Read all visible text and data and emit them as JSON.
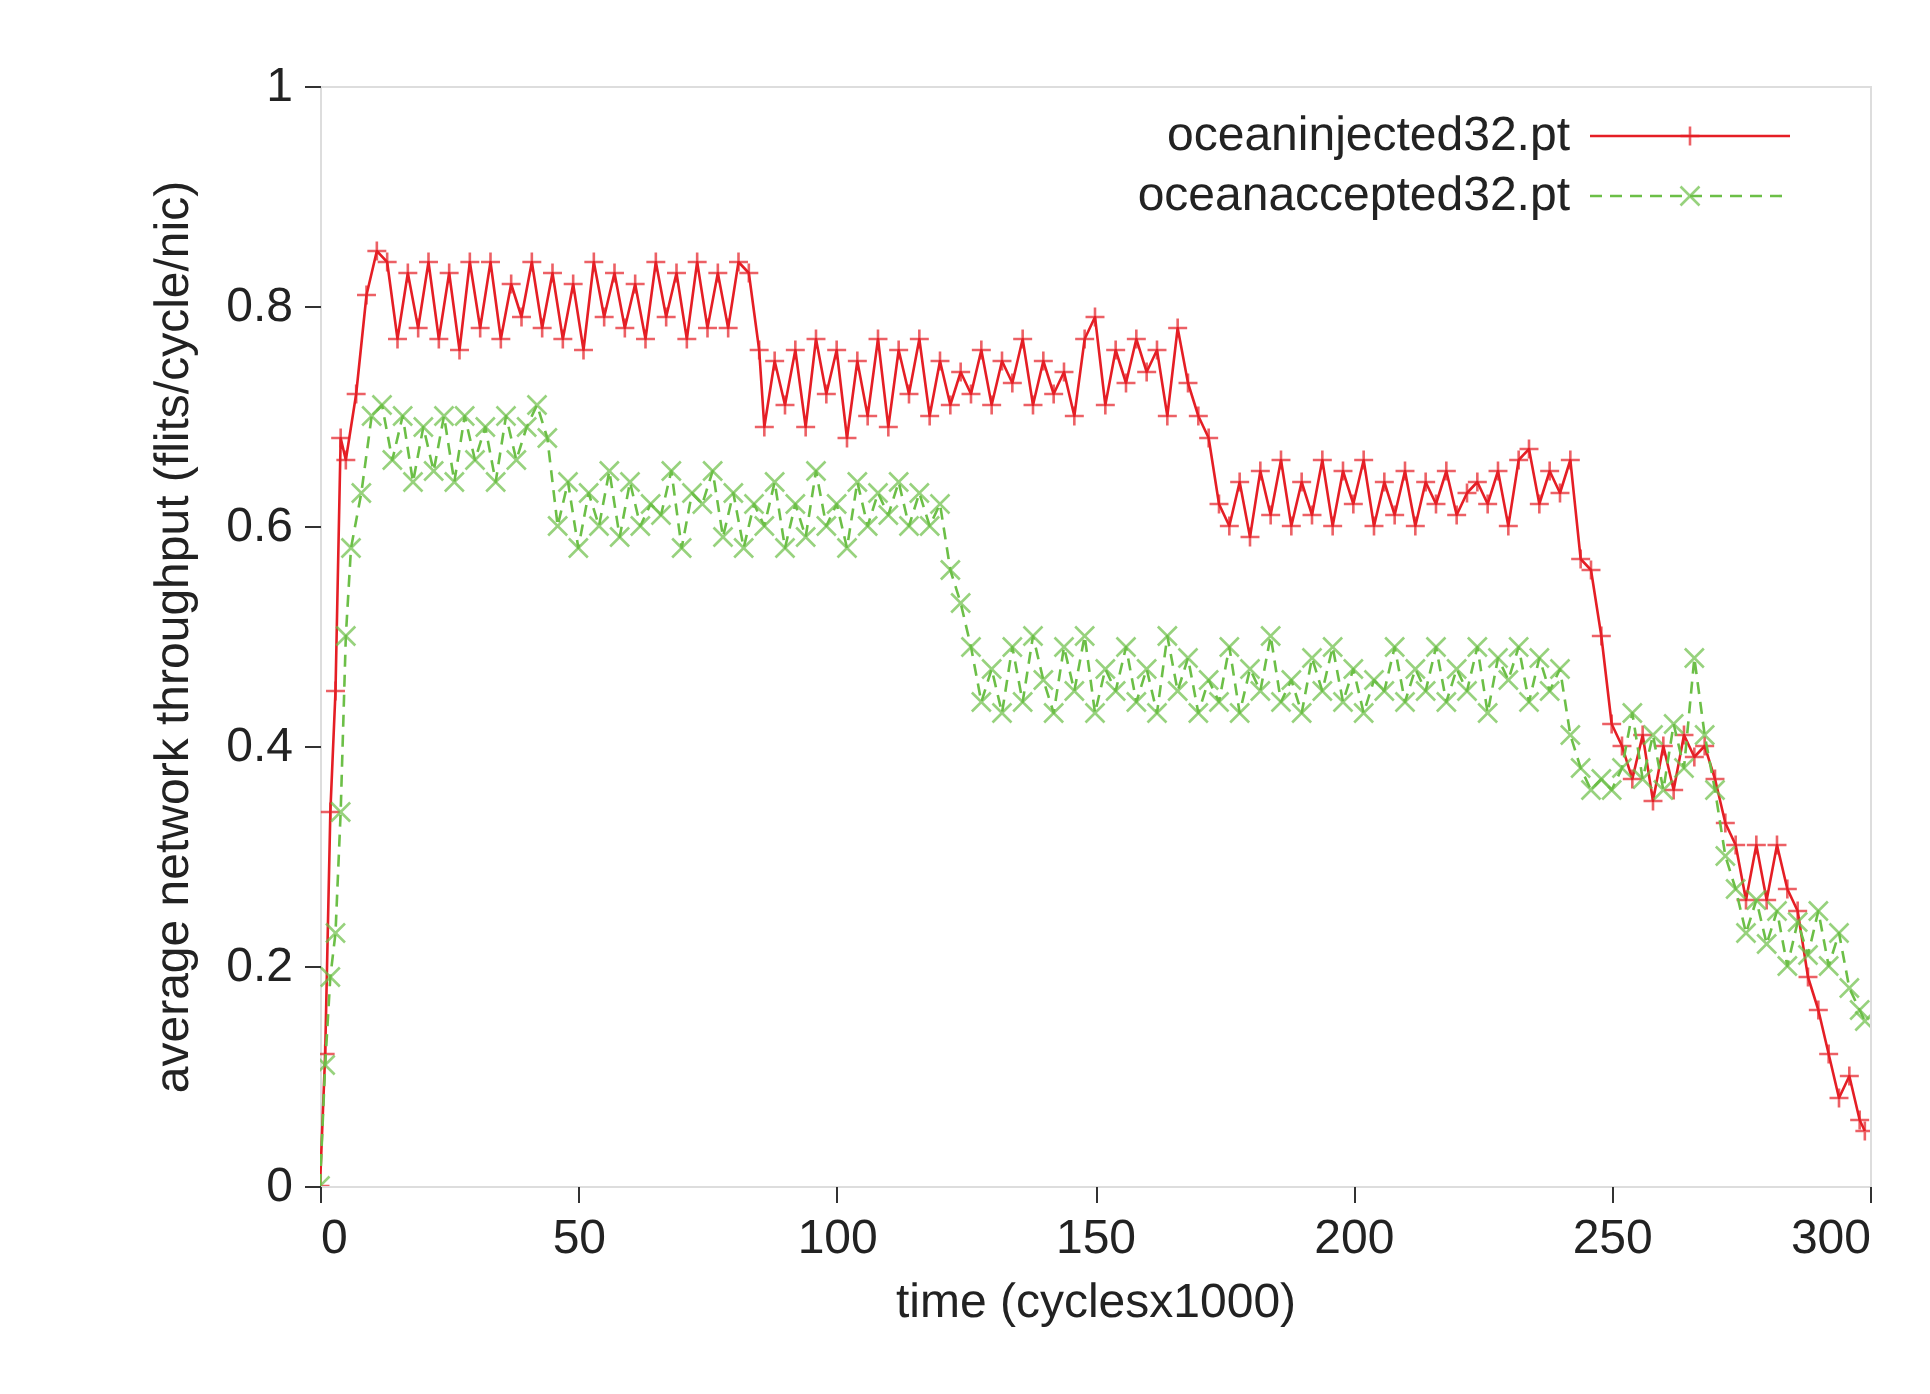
{
  "chart_data": {
    "type": "line",
    "xlabel": "time (cyclesx1000)",
    "ylabel": "average network throughput (flits/cycle/nic)",
    "xlim": [
      0,
      300
    ],
    "ylim": [
      0,
      1
    ],
    "xticks": [
      0,
      50,
      100,
      150,
      200,
      250,
      300
    ],
    "yticks": [
      0,
      0.2,
      0.4,
      0.6,
      0.8,
      1
    ],
    "grid": false,
    "legend": "top right",
    "series": [
      {
        "name": "oceaninjected32.pt",
        "color": "#e51e25",
        "marker": "cross",
        "line_style": "solid",
        "x": [
          0,
          1,
          2,
          3,
          4,
          5,
          7,
          9,
          11,
          13,
          15,
          17,
          19,
          21,
          23,
          25,
          27,
          29,
          31,
          33,
          35,
          37,
          39,
          41,
          43,
          45,
          47,
          49,
          51,
          53,
          55,
          57,
          59,
          61,
          63,
          65,
          67,
          69,
          71,
          73,
          75,
          77,
          79,
          81,
          83,
          85,
          86,
          88,
          90,
          92,
          94,
          96,
          98,
          100,
          102,
          104,
          106,
          108,
          110,
          112,
          114,
          116,
          118,
          120,
          122,
          124,
          126,
          128,
          130,
          132,
          134,
          136,
          138,
          140,
          142,
          144,
          146,
          148,
          150,
          152,
          154,
          156,
          158,
          160,
          162,
          164,
          166,
          168,
          170,
          172,
          174,
          176,
          178,
          180,
          182,
          184,
          186,
          188,
          190,
          192,
          194,
          196,
          198,
          200,
          202,
          204,
          206,
          208,
          210,
          212,
          214,
          216,
          218,
          220,
          222,
          224,
          226,
          228,
          230,
          232,
          234,
          236,
          238,
          240,
          242,
          244,
          246,
          248,
          250,
          252,
          254,
          256,
          258,
          260,
          262,
          264,
          266,
          268,
          270,
          272,
          274,
          276,
          278,
          280,
          282,
          284,
          286,
          288,
          290,
          292,
          294,
          296,
          298,
          299
        ],
        "values": [
          0,
          0.12,
          0.34,
          0.45,
          0.68,
          0.66,
          0.72,
          0.81,
          0.85,
          0.84,
          0.77,
          0.83,
          0.78,
          0.84,
          0.77,
          0.83,
          0.76,
          0.84,
          0.78,
          0.84,
          0.77,
          0.82,
          0.79,
          0.84,
          0.78,
          0.83,
          0.77,
          0.82,
          0.76,
          0.84,
          0.79,
          0.83,
          0.78,
          0.82,
          0.77,
          0.84,
          0.79,
          0.83,
          0.77,
          0.84,
          0.78,
          0.83,
          0.78,
          0.84,
          0.83,
          0.76,
          0.69,
          0.75,
          0.71,
          0.76,
          0.69,
          0.77,
          0.72,
          0.76,
          0.68,
          0.75,
          0.7,
          0.77,
          0.69,
          0.76,
          0.72,
          0.77,
          0.7,
          0.75,
          0.71,
          0.74,
          0.72,
          0.76,
          0.71,
          0.75,
          0.73,
          0.77,
          0.71,
          0.75,
          0.72,
          0.74,
          0.7,
          0.77,
          0.79,
          0.71,
          0.76,
          0.73,
          0.77,
          0.74,
          0.76,
          0.7,
          0.78,
          0.73,
          0.7,
          0.68,
          0.62,
          0.6,
          0.64,
          0.59,
          0.65,
          0.61,
          0.66,
          0.6,
          0.64,
          0.61,
          0.66,
          0.6,
          0.65,
          0.62,
          0.66,
          0.6,
          0.64,
          0.61,
          0.65,
          0.6,
          0.64,
          0.62,
          0.65,
          0.61,
          0.63,
          0.64,
          0.62,
          0.65,
          0.6,
          0.66,
          0.67,
          0.62,
          0.65,
          0.63,
          0.66,
          0.57,
          0.56,
          0.5,
          0.42,
          0.4,
          0.37,
          0.41,
          0.35,
          0.4,
          0.36,
          0.41,
          0.39,
          0.4,
          0.37,
          0.33,
          0.31,
          0.26,
          0.31,
          0.26,
          0.31,
          0.27,
          0.25,
          0.19,
          0.16,
          0.12,
          0.08,
          0.1,
          0.06,
          0.05
        ]
      },
      {
        "name": "oceanaccepted32.pt",
        "color": "#6cbf47",
        "marker": "x",
        "line_style": "dashed",
        "x": [
          0,
          1,
          2,
          3,
          4,
          5,
          6,
          8,
          10,
          12,
          14,
          16,
          18,
          20,
          22,
          24,
          26,
          28,
          30,
          32,
          34,
          36,
          38,
          40,
          42,
          44,
          46,
          48,
          50,
          52,
          54,
          56,
          58,
          60,
          62,
          64,
          66,
          68,
          70,
          72,
          74,
          76,
          78,
          80,
          82,
          84,
          86,
          88,
          90,
          92,
          94,
          96,
          98,
          100,
          102,
          104,
          106,
          108,
          110,
          112,
          114,
          116,
          118,
          120,
          122,
          124,
          126,
          128,
          130,
          132,
          134,
          136,
          138,
          140,
          142,
          144,
          146,
          148,
          150,
          152,
          154,
          156,
          158,
          160,
          162,
          164,
          166,
          168,
          170,
          172,
          174,
          176,
          178,
          180,
          182,
          184,
          186,
          188,
          190,
          192,
          194,
          196,
          198,
          200,
          202,
          204,
          206,
          208,
          210,
          212,
          214,
          216,
          218,
          220,
          222,
          224,
          226,
          228,
          230,
          232,
          234,
          236,
          238,
          240,
          242,
          244,
          246,
          248,
          250,
          252,
          254,
          256,
          258,
          260,
          262,
          264,
          266,
          268,
          270,
          272,
          274,
          276,
          278,
          280,
          282,
          284,
          286,
          288,
          290,
          292,
          294,
          296,
          298,
          299
        ],
        "values": [
          0,
          0.11,
          0.19,
          0.23,
          0.34,
          0.5,
          0.58,
          0.63,
          0.7,
          0.71,
          0.66,
          0.7,
          0.64,
          0.69,
          0.65,
          0.7,
          0.64,
          0.7,
          0.66,
          0.69,
          0.64,
          0.7,
          0.66,
          0.69,
          0.71,
          0.68,
          0.6,
          0.64,
          0.58,
          0.63,
          0.6,
          0.65,
          0.59,
          0.64,
          0.6,
          0.62,
          0.61,
          0.65,
          0.58,
          0.63,
          0.62,
          0.65,
          0.59,
          0.63,
          0.58,
          0.62,
          0.6,
          0.64,
          0.58,
          0.62,
          0.59,
          0.65,
          0.6,
          0.62,
          0.58,
          0.64,
          0.6,
          0.63,
          0.61,
          0.64,
          0.6,
          0.63,
          0.6,
          0.62,
          0.56,
          0.53,
          0.49,
          0.44,
          0.47,
          0.43,
          0.49,
          0.44,
          0.5,
          0.46,
          0.43,
          0.49,
          0.45,
          0.5,
          0.43,
          0.47,
          0.45,
          0.49,
          0.44,
          0.47,
          0.43,
          0.5,
          0.45,
          0.48,
          0.43,
          0.46,
          0.44,
          0.49,
          0.43,
          0.47,
          0.45,
          0.5,
          0.44,
          0.46,
          0.43,
          0.48,
          0.45,
          0.49,
          0.44,
          0.47,
          0.43,
          0.46,
          0.45,
          0.49,
          0.44,
          0.47,
          0.45,
          0.49,
          0.44,
          0.47,
          0.45,
          0.49,
          0.43,
          0.48,
          0.46,
          0.49,
          0.44,
          0.48,
          0.45,
          0.47,
          0.41,
          0.38,
          0.36,
          0.37,
          0.36,
          0.38,
          0.43,
          0.37,
          0.41,
          0.36,
          0.42,
          0.38,
          0.48,
          0.41,
          0.36,
          0.3,
          0.27,
          0.23,
          0.26,
          0.22,
          0.25,
          0.2,
          0.24,
          0.21,
          0.25,
          0.2,
          0.23,
          0.18,
          0.16,
          0.15
        ]
      }
    ]
  }
}
